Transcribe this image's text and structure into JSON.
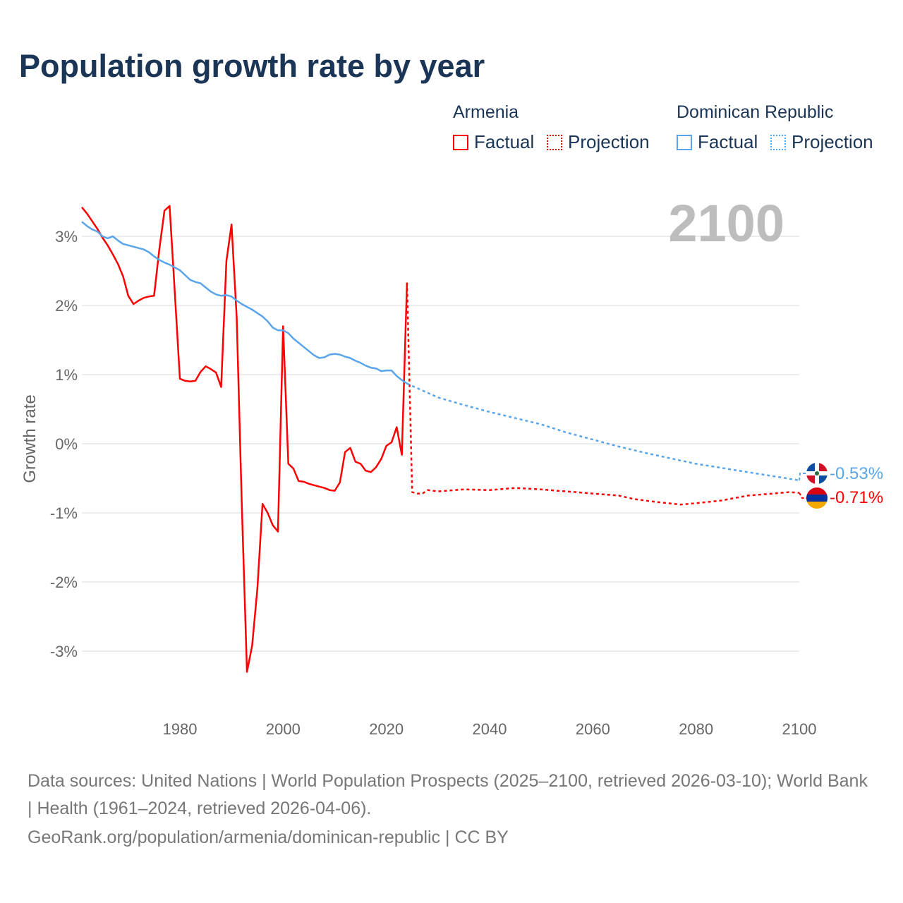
{
  "title": "Population growth rate by year",
  "legend": {
    "groups": [
      {
        "name": "Armenia",
        "factual": "Factual",
        "projection": "Projection",
        "color": "#ff0000"
      },
      {
        "name": "Dominican Republic",
        "factual": "Factual",
        "projection": "Projection",
        "color": "#5aa5ea"
      }
    ]
  },
  "year_label": "2100",
  "end_labels": {
    "dominican": "-0.53%",
    "armenia": "-0.71%"
  },
  "footer": {
    "line1": "Data sources: United Nations | World Population Prospects (2025–2100, retrieved 2026-03-10); World Bank | Health (1961–2024, retrieved 2026-04-06).",
    "line2": "GeoRank.org/population/armenia/dominican-republic | CC BY"
  },
  "chart_data": {
    "type": "line",
    "title": "Population growth rate by year",
    "xlabel": "",
    "ylabel": "Growth rate",
    "xlim": [
      1961,
      2100
    ],
    "ylim": [
      -3.9,
      3.6
    ],
    "xticks": [
      1980,
      2000,
      2020,
      2040,
      2060,
      2080,
      2100
    ],
    "xtick_labels": [
      "1980",
      "2000",
      "2020",
      "2040",
      "2060",
      "2080",
      "2100"
    ],
    "yticks": [
      3,
      2,
      1,
      0,
      -1,
      -2,
      -3
    ],
    "ytick_labels": [
      "3%",
      "2%",
      "1%",
      "0%",
      "-1%",
      "-2%",
      "-3%"
    ],
    "grid": true,
    "legend_position": "top-right",
    "series": [
      {
        "name": "Armenia Factual",
        "color": "#ff0000",
        "dashed": false,
        "x": [
          1961,
          1962,
          1963,
          1964,
          1965,
          1966,
          1967,
          1968,
          1969,
          1970,
          1971,
          1972,
          1973,
          1974,
          1975,
          1976,
          1977,
          1978,
          1979,
          1980,
          1981,
          1982,
          1983,
          1984,
          1985,
          1986,
          1987,
          1988,
          1989,
          1990,
          1991,
          1992,
          1993,
          1994,
          1995,
          1996,
          1997,
          1998,
          1999,
          2000,
          2001,
          2002,
          2003,
          2004,
          2005,
          2006,
          2007,
          2008,
          2009,
          2010,
          2011,
          2012,
          2013,
          2014,
          2015,
          2016,
          2017,
          2018,
          2019,
          2020,
          2021,
          2022,
          2023,
          2024
        ],
        "y": [
          3.42,
          3.33,
          3.22,
          3.11,
          2.98,
          2.87,
          2.74,
          2.6,
          2.42,
          2.14,
          2.02,
          2.07,
          2.11,
          2.13,
          2.14,
          2.8,
          3.37,
          3.44,
          2.2,
          0.94,
          0.91,
          0.9,
          0.91,
          1.04,
          1.12,
          1.08,
          1.03,
          0.82,
          2.64,
          3.17,
          1.83,
          -0.9,
          -3.3,
          -2.92,
          -2.1,
          -0.87,
          -1.0,
          -1.18,
          -1.27,
          1.7,
          -0.29,
          -0.36,
          -0.54,
          -0.55,
          -0.58,
          -0.6,
          -0.62,
          -0.64,
          -0.67,
          -0.68,
          -0.56,
          -0.12,
          -0.06,
          -0.26,
          -0.29,
          -0.39,
          -0.41,
          -0.34,
          -0.22,
          -0.03,
          0.02,
          0.24,
          -0.16,
          2.33
        ]
      },
      {
        "name": "Armenia Projection",
        "color": "#ff0000",
        "dashed": true,
        "x": [
          2024,
          2025,
          2026,
          2027,
          2028,
          2030,
          2035,
          2040,
          2045,
          2050,
          2053,
          2055,
          2060,
          2065,
          2068,
          2072,
          2077,
          2080,
          2085,
          2090,
          2095,
          2098,
          2100
        ],
        "y": [
          2.33,
          -0.7,
          -0.72,
          -0.72,
          -0.67,
          -0.69,
          -0.66,
          -0.67,
          -0.64,
          -0.66,
          -0.68,
          -0.69,
          -0.72,
          -0.75,
          -0.8,
          -0.84,
          -0.88,
          -0.86,
          -0.82,
          -0.75,
          -0.72,
          -0.7,
          -0.71
        ]
      },
      {
        "name": "Dominican Republic Factual",
        "color": "#5aa5ea",
        "dashed": false,
        "x": [
          1961,
          1962,
          1963,
          1964,
          1965,
          1966,
          1967,
          1968,
          1969,
          1970,
          1971,
          1972,
          1973,
          1974,
          1975,
          1976,
          1977,
          1978,
          1979,
          1980,
          1981,
          1982,
          1983,
          1984,
          1985,
          1986,
          1987,
          1988,
          1989,
          1990,
          1991,
          1992,
          1993,
          1994,
          1995,
          1996,
          1997,
          1998,
          1999,
          2000,
          2001,
          2002,
          2003,
          2004,
          2005,
          2006,
          2007,
          2008,
          2009,
          2010,
          2011,
          2012,
          2013,
          2014,
          2015,
          2016,
          2017,
          2018,
          2019,
          2020,
          2021,
          2022,
          2023,
          2024
        ],
        "y": [
          3.21,
          3.15,
          3.1,
          3.07,
          3.0,
          2.97,
          3.0,
          2.94,
          2.89,
          2.87,
          2.85,
          2.83,
          2.81,
          2.77,
          2.71,
          2.66,
          2.62,
          2.59,
          2.55,
          2.51,
          2.44,
          2.37,
          2.34,
          2.32,
          2.26,
          2.2,
          2.16,
          2.14,
          2.15,
          2.13,
          2.07,
          2.02,
          1.98,
          1.94,
          1.89,
          1.84,
          1.77,
          1.68,
          1.64,
          1.64,
          1.6,
          1.52,
          1.46,
          1.4,
          1.34,
          1.28,
          1.24,
          1.25,
          1.29,
          1.3,
          1.29,
          1.26,
          1.24,
          1.2,
          1.17,
          1.13,
          1.1,
          1.09,
          1.05,
          1.06,
          1.06,
          0.98,
          0.92,
          0.87
        ]
      },
      {
        "name": "Dominican Republic Projection",
        "color": "#5aa5ea",
        "dashed": true,
        "x": [
          2024,
          2030,
          2035,
          2040,
          2045,
          2050,
          2055,
          2060,
          2065,
          2070,
          2075,
          2080,
          2085,
          2090,
          2095,
          2100
        ],
        "y": [
          0.87,
          0.67,
          0.56,
          0.46,
          0.37,
          0.28,
          0.16,
          0.06,
          -0.04,
          -0.13,
          -0.21,
          -0.29,
          -0.35,
          -0.41,
          -0.47,
          -0.53
        ]
      }
    ]
  }
}
